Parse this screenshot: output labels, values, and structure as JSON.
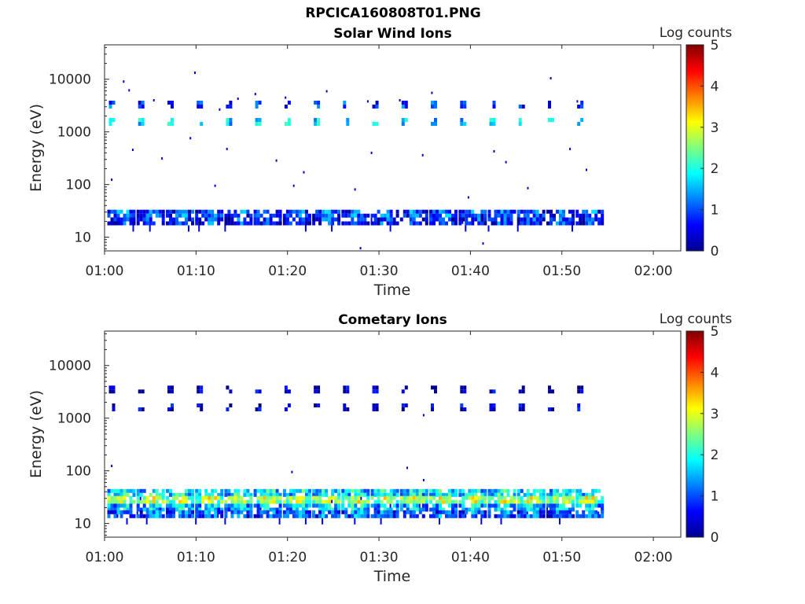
{
  "figure": {
    "title": "RPCICA160808T01.PNG"
  },
  "chart_data": [
    {
      "type": "heatmap",
      "title": "Solar Wind Ions",
      "xlabel": "Time",
      "ylabel": "Energy (eV)",
      "x_ticks": [
        "01:00",
        "01:10",
        "01:20",
        "01:30",
        "01:40",
        "01:50",
        "02:00"
      ],
      "xlim_minutes": [
        0,
        63
      ],
      "y_scale": "log",
      "y_ticks": [
        "10",
        "100",
        "1000",
        "10000"
      ],
      "ylim": [
        5.5,
        45000
      ],
      "colorbar": {
        "label": "Log counts",
        "min": 0,
        "max": 5,
        "ticks": [
          "0",
          "1",
          "2",
          "3",
          "4",
          "5"
        ],
        "colormap": "jet"
      },
      "sweep_start_minutes": [
        0.3,
        3.5,
        6.7,
        9.9,
        13.1,
        16.3,
        19.5,
        22.7,
        25.9,
        29.1,
        32.3,
        35.5,
        38.7,
        41.9,
        45.1,
        48.3,
        51.5
      ],
      "sweep_end_minutes": 53.0,
      "bands": [
        {
          "energy_center": 3300,
          "intensity": 0.85
        },
        {
          "energy_center": 1550,
          "intensity": 1.6
        },
        {
          "energy_center": 28,
          "intensity": 0.7
        },
        {
          "energy_center": 20,
          "intensity": 0.5
        }
      ],
      "scatter_points": [
        {
          "t": 2.0,
          "e": 9500,
          "log": 0.4
        },
        {
          "t": 2.6,
          "e": 6500,
          "log": 0.4
        },
        {
          "t": 5.3,
          "e": 4200,
          "log": 0.4
        },
        {
          "t": 9.8,
          "e": 14000,
          "log": 0.4
        },
        {
          "t": 9.3,
          "e": 800,
          "log": 0.4
        },
        {
          "t": 12.5,
          "e": 2800,
          "log": 0.4
        },
        {
          "t": 14.5,
          "e": 4500,
          "log": 0.4
        },
        {
          "t": 16.4,
          "e": 5500,
          "log": 0.4
        },
        {
          "t": 19.7,
          "e": 4700,
          "log": 0.4
        },
        {
          "t": 24.2,
          "e": 6200,
          "log": 0.4
        },
        {
          "t": 28.7,
          "e": 4000,
          "log": 0.4
        },
        {
          "t": 32.2,
          "e": 4200,
          "log": 0.4
        },
        {
          "t": 35.7,
          "e": 5800,
          "log": 0.4
        },
        {
          "t": 48.7,
          "e": 11000,
          "log": 0.4
        },
        {
          "t": 51.6,
          "e": 4000,
          "log": 0.4
        },
        {
          "t": 3.0,
          "e": 480,
          "log": 0.4
        },
        {
          "t": 6.2,
          "e": 330,
          "log": 0.4
        },
        {
          "t": 13.3,
          "e": 500,
          "log": 0.4
        },
        {
          "t": 18.7,
          "e": 300,
          "log": 0.4
        },
        {
          "t": 21.7,
          "e": 180,
          "log": 0.4
        },
        {
          "t": 29.1,
          "e": 420,
          "log": 0.4
        },
        {
          "t": 34.7,
          "e": 380,
          "log": 0.4
        },
        {
          "t": 42.5,
          "e": 450,
          "log": 0.4
        },
        {
          "t": 43.8,
          "e": 280,
          "log": 0.4
        },
        {
          "t": 52.6,
          "e": 200,
          "log": 0.4
        },
        {
          "t": 0.7,
          "e": 130,
          "log": 0.4
        },
        {
          "t": 12.0,
          "e": 100,
          "log": 0.4
        },
        {
          "t": 20.6,
          "e": 100,
          "log": 0.4
        },
        {
          "t": 27.3,
          "e": 85,
          "log": 0.4
        },
        {
          "t": 46.2,
          "e": 90,
          "log": 0.4
        },
        {
          "t": 41.3,
          "e": 8,
          "log": 0.4
        },
        {
          "t": 27.9,
          "e": 6.5,
          "log": 0.4
        },
        {
          "t": 50.8,
          "e": 500,
          "log": 0.4
        },
        {
          "t": 39.7,
          "e": 60,
          "log": 0.4
        }
      ]
    },
    {
      "type": "heatmap",
      "title": "Cometary Ions",
      "xlabel": "Time",
      "ylabel": "Energy (eV)",
      "x_ticks": [
        "01:00",
        "01:10",
        "01:20",
        "01:30",
        "01:40",
        "01:50",
        "02:00"
      ],
      "xlim_minutes": [
        0,
        63
      ],
      "y_scale": "log",
      "y_ticks": [
        "10",
        "100",
        "1000",
        "10000"
      ],
      "ylim": [
        5.5,
        45000
      ],
      "colorbar": {
        "label": "Log counts",
        "min": 0,
        "max": 5,
        "ticks": [
          "0",
          "1",
          "2",
          "3",
          "4",
          "5"
        ],
        "colormap": "jet"
      },
      "sweep_start_minutes": [
        0.3,
        3.5,
        6.7,
        9.9,
        13.1,
        16.3,
        19.5,
        22.7,
        25.9,
        29.1,
        32.3,
        35.5,
        38.7,
        41.9,
        45.1,
        48.3,
        51.5
      ],
      "sweep_end_minutes": 53.0,
      "bands": [
        {
          "energy_center": 3500,
          "intensity": 0.3
        },
        {
          "energy_center": 1600,
          "intensity": 0.4
        },
        {
          "energy_center": 38,
          "intensity": 1.5
        },
        {
          "energy_center": 28,
          "intensity": 2.4
        },
        {
          "energy_center": 20,
          "intensity": 1.3
        },
        {
          "energy_center": 15,
          "intensity": 0.8
        }
      ],
      "scatter_points": [
        {
          "t": 0.7,
          "e": 130,
          "log": 0.4
        },
        {
          "t": 20.4,
          "e": 100,
          "log": 0.4
        },
        {
          "t": 33.0,
          "e": 120,
          "log": 0.4
        },
        {
          "t": 34.8,
          "e": 70,
          "log": 0.4
        },
        {
          "t": 34.8,
          "e": 1200,
          "log": 0.4
        }
      ]
    }
  ]
}
